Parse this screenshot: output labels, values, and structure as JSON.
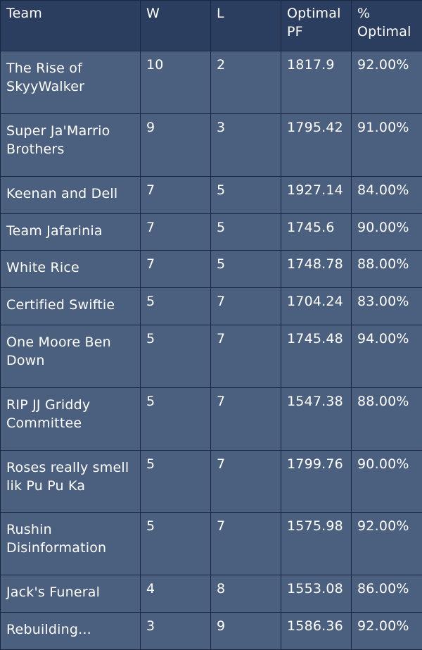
{
  "headers": {
    "team": "Team",
    "w": "W",
    "l": "L",
    "optimal_pf": "Optimal PF",
    "pct_optimal": "% Optimal"
  },
  "rows": [
    {
      "team": "The Rise of SkyyWalker",
      "w": "10",
      "l": "2",
      "optimal_pf": "1817.9",
      "pct_optimal": "92.00%"
    },
    {
      "team": "Super Ja'Marrio Brothers",
      "w": "9",
      "l": "3",
      "optimal_pf": "1795.42",
      "pct_optimal": "91.00%"
    },
    {
      "team": "Keenan and Dell",
      "w": "7",
      "l": "5",
      "optimal_pf": "1927.14",
      "pct_optimal": "84.00%"
    },
    {
      "team": "Team Jafarinia",
      "w": "7",
      "l": "5",
      "optimal_pf": "1745.6",
      "pct_optimal": "90.00%"
    },
    {
      "team": "White Rice",
      "w": "7",
      "l": "5",
      "optimal_pf": "1748.78",
      "pct_optimal": "88.00%"
    },
    {
      "team": "Certified Swiftie",
      "w": "5",
      "l": "7",
      "optimal_pf": "1704.24",
      "pct_optimal": "83.00%"
    },
    {
      "team": "One Moore Ben Down",
      "w": "5",
      "l": "7",
      "optimal_pf": "1745.48",
      "pct_optimal": "94.00%"
    },
    {
      "team": "RIP JJ Griddy Committee",
      "w": "5",
      "l": "7",
      "optimal_pf": "1547.38",
      "pct_optimal": "88.00%"
    },
    {
      "team": "Roses really smell lik Pu Pu Ka",
      "w": "5",
      "l": "7",
      "optimal_pf": "1799.76",
      "pct_optimal": "90.00%"
    },
    {
      "team": "Rushin Disinformation",
      "w": "5",
      "l": "7",
      "optimal_pf": "1575.98",
      "pct_optimal": "92.00%"
    },
    {
      "team": "Jack's Funeral",
      "w": "4",
      "l": "8",
      "optimal_pf": "1553.08",
      "pct_optimal": "86.00%"
    },
    {
      "team": "Rebuilding...",
      "w": "3",
      "l": "9",
      "optimal_pf": "1586.36",
      "pct_optimal": "92.00%"
    }
  ]
}
